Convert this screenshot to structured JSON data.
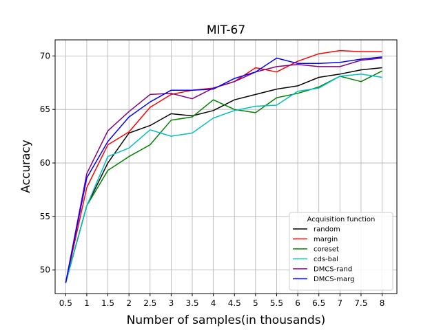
{
  "chart_data": {
    "type": "line",
    "title": "MIT-67",
    "xlabel": "Number of samples(in thousands)",
    "ylabel": "Accuracy",
    "x": [
      0.5,
      1,
      1.5,
      2,
      2.5,
      3,
      3.5,
      4,
      4.5,
      5,
      5.5,
      6,
      6.5,
      7,
      7.5,
      8
    ],
    "x_tick_labels": [
      "0.5",
      "1",
      "1.5",
      "2",
      "2.5",
      "3",
      "3.5",
      "4",
      "4.5",
      "5",
      "5.5",
      "6",
      "6.5",
      "7",
      "7.5",
      "8"
    ],
    "y_ticks": [
      50,
      55,
      60,
      65,
      70
    ],
    "xlim": [
      0.25,
      8.35
    ],
    "ylim": [
      47.8,
      71.5
    ],
    "grid": true,
    "legend": {
      "title": "Acquisition function",
      "placement": "lower-right"
    },
    "series": [
      {
        "name": "random",
        "color": "#000000",
        "values": [
          48.8,
          56.0,
          60.0,
          62.8,
          63.5,
          64.6,
          64.4,
          64.9,
          65.9,
          66.4,
          66.9,
          67.2,
          68.0,
          68.3,
          68.7,
          68.9
        ]
      },
      {
        "name": "margin",
        "color": "#ff0000",
        "values": [
          48.8,
          57.7,
          61.7,
          62.9,
          65.2,
          66.4,
          66.8,
          67.0,
          67.6,
          68.9,
          68.5,
          69.5,
          70.2,
          70.5,
          70.4,
          70.4
        ]
      },
      {
        "name": "coreset",
        "color": "#008000",
        "values": [
          48.8,
          56.0,
          59.3,
          60.6,
          61.7,
          64.0,
          64.3,
          65.9,
          65.0,
          64.7,
          66.1,
          66.5,
          67.1,
          68.1,
          67.6,
          68.6
        ]
      },
      {
        "name": "cds-bal",
        "color": "#00bfbf",
        "values": [
          48.8,
          56.0,
          60.6,
          61.4,
          63.1,
          62.5,
          62.8,
          64.2,
          64.9,
          65.3,
          65.4,
          66.7,
          67.0,
          68.1,
          68.3,
          68.0
        ]
      },
      {
        "name": "DMCS-rand",
        "color": "#800080",
        "values": [
          48.8,
          59.0,
          63.0,
          64.8,
          66.4,
          66.5,
          66.0,
          67.0,
          67.6,
          68.5,
          69.0,
          69.2,
          69.0,
          69.0,
          69.6,
          69.8
        ]
      },
      {
        "name": "DMCS-marg",
        "color": "#0000ff",
        "values": [
          48.8,
          58.6,
          62.0,
          64.3,
          65.7,
          66.8,
          66.8,
          66.9,
          67.9,
          68.5,
          69.8,
          69.3,
          69.3,
          69.4,
          69.7,
          69.9
        ]
      }
    ]
  }
}
